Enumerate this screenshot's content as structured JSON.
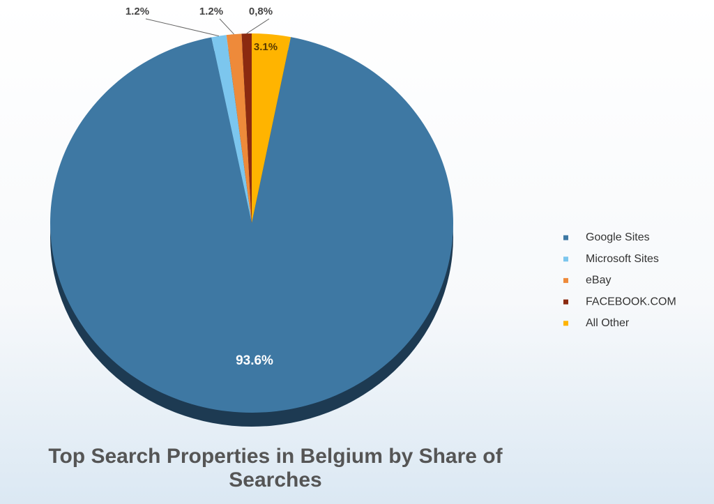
{
  "chart_data": {
    "type": "pie",
    "title": "Top Search Properties in Belgium by Share of Searches",
    "categories": [
      "Google Sites",
      "Microsoft Sites",
      "eBay",
      "FACEBOOK.COM",
      "All Other"
    ],
    "values": [
      93.6,
      1.2,
      1.2,
      0.8,
      3.1
    ],
    "value_labels": [
      "93.6%",
      "1.2%",
      "1.2%",
      "0,8%",
      "3.1%"
    ],
    "colors": [
      "#3e78a3",
      "#7cc6ee",
      "#ee8a3a",
      "#8b2a10",
      "#ffb400"
    ],
    "legend": "right"
  }
}
